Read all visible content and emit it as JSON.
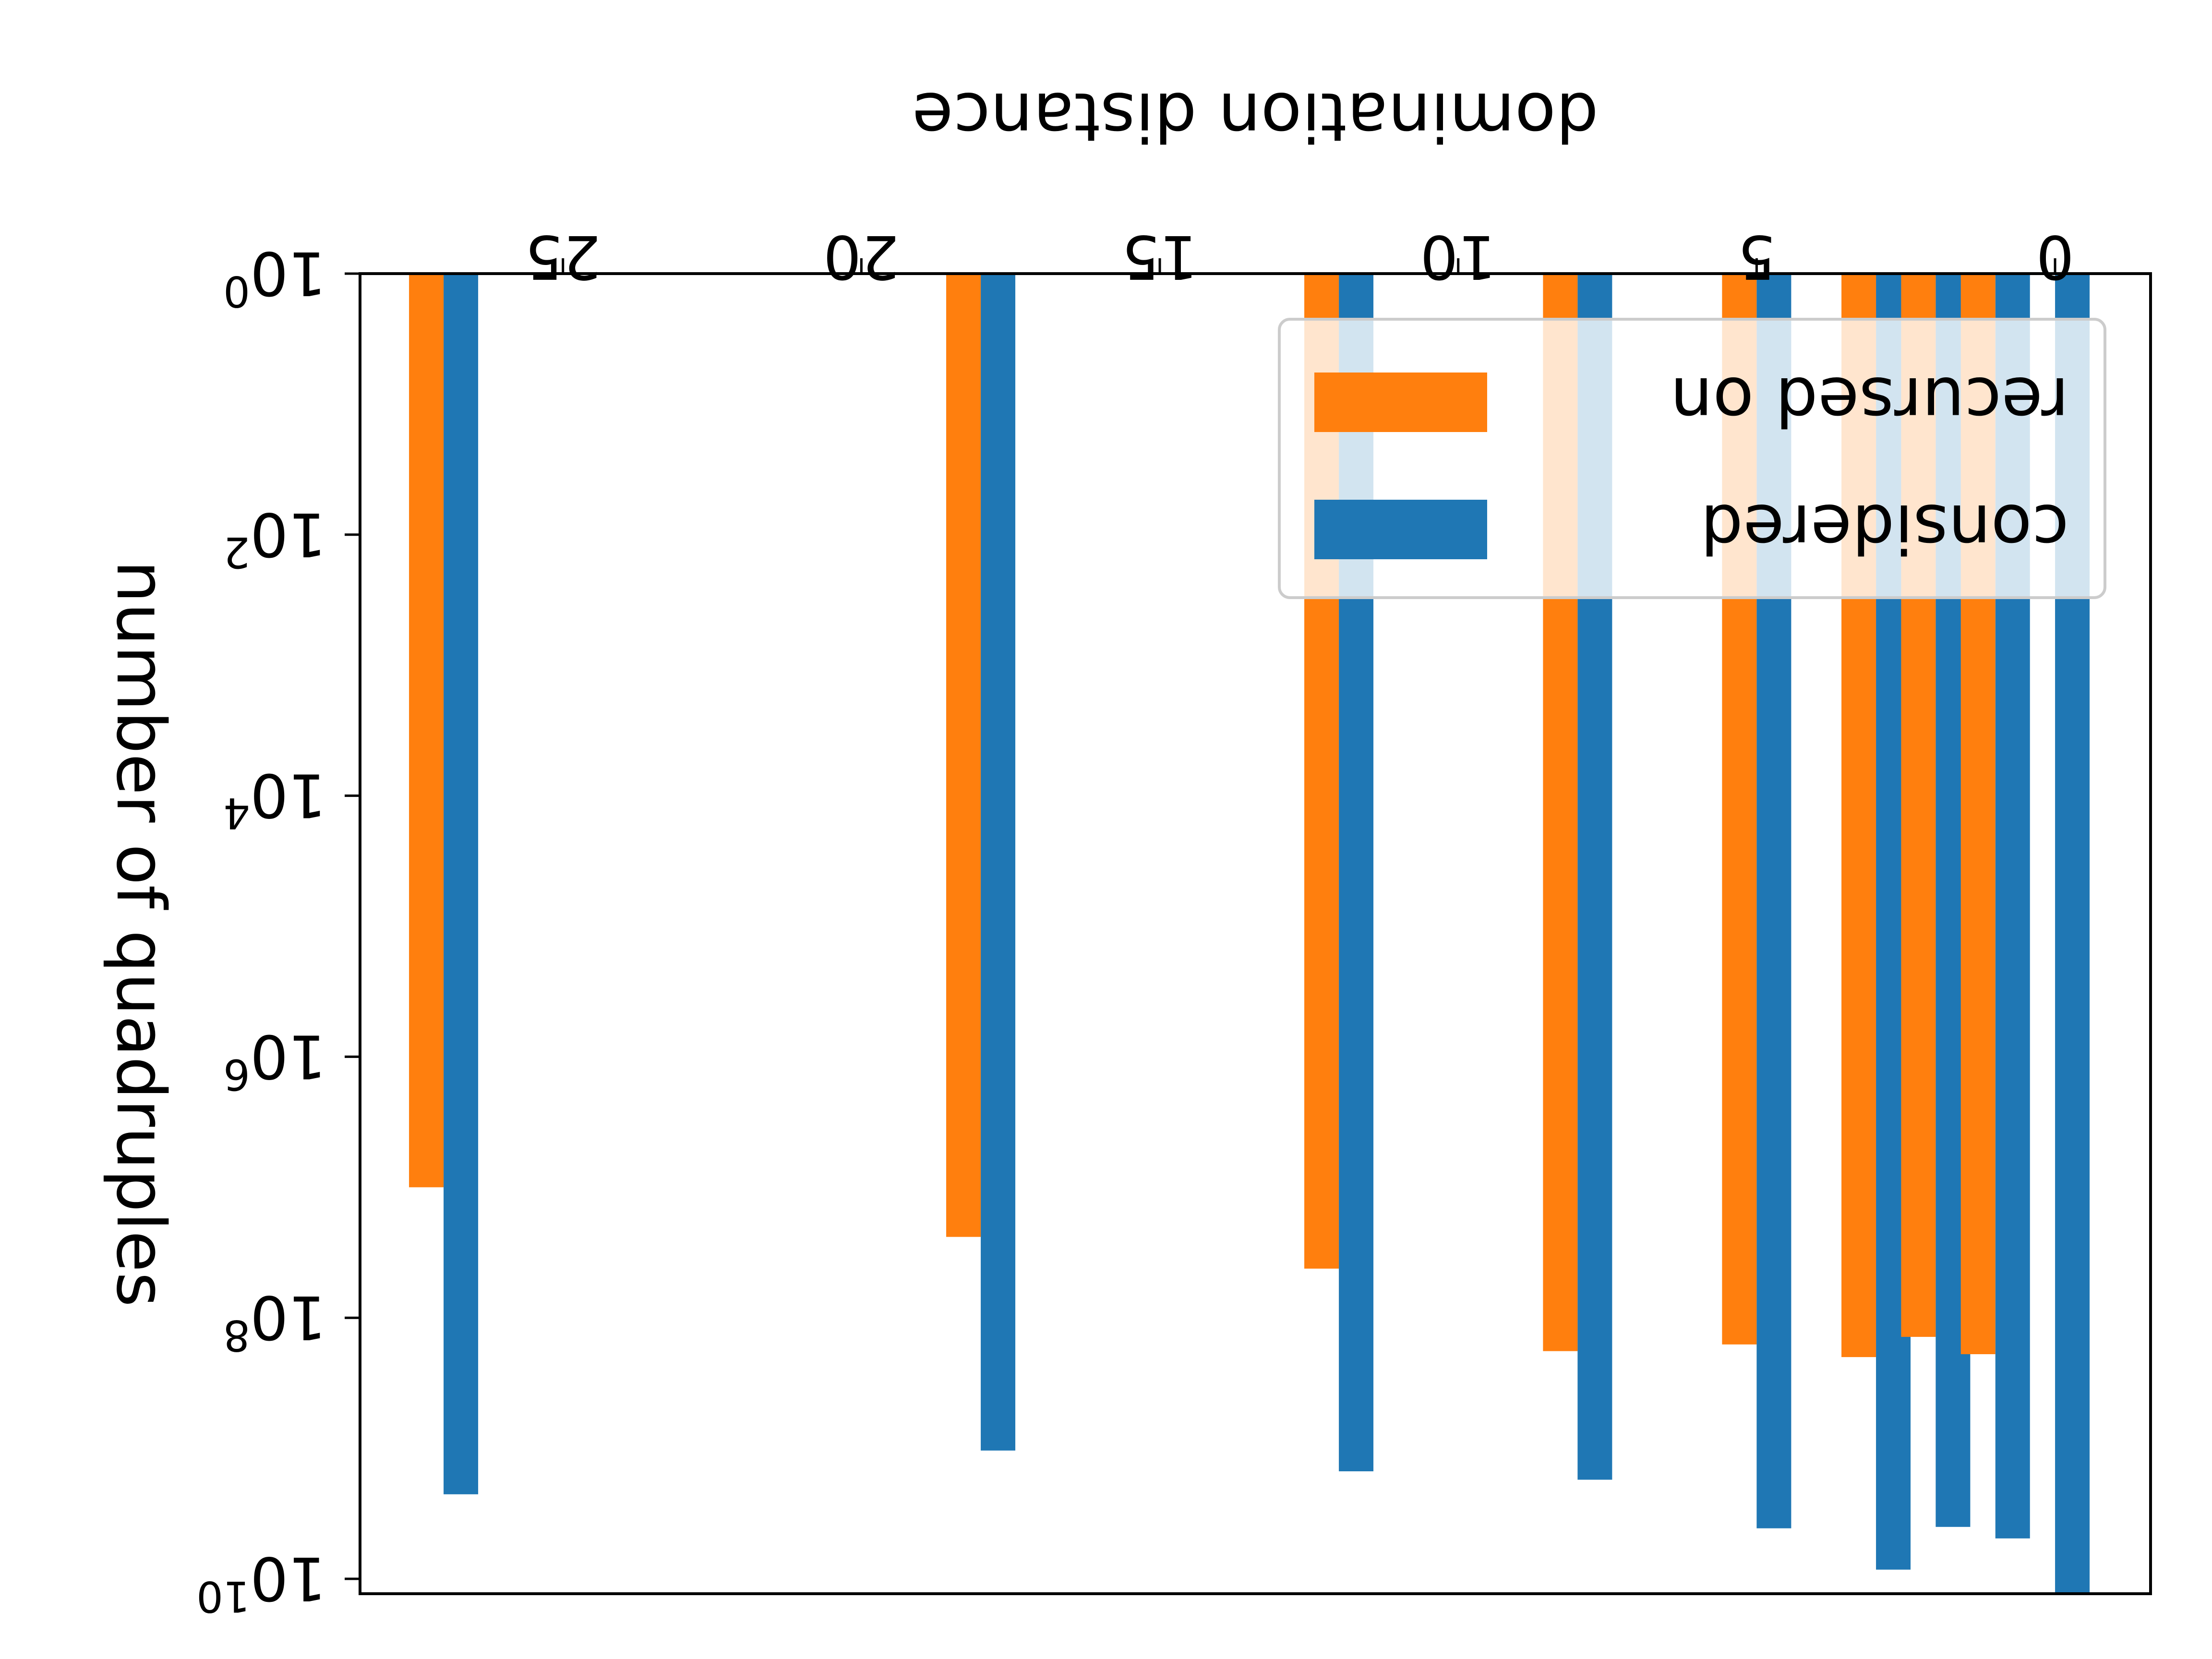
{
  "chart_data": {
    "type": "bar",
    "orientation": "rendered mirrored (rotated 180 degrees)",
    "xlabel": "domination distance",
    "ylabel": "number of quadruples",
    "x_ticks": [
      0,
      5,
      10,
      15,
      20,
      25
    ],
    "x_tick_labels": [
      "0",
      "5",
      "10",
      "15",
      "20",
      "25"
    ],
    "xlim": [
      -1.6,
      28.4
    ],
    "y_scale": "log",
    "ylim": [
      1,
      13000000000
    ],
    "y_ticks": [
      1,
      100,
      10000,
      1000000,
      100000000,
      10000000000
    ],
    "y_tick_labels": [
      {
        "base": "10",
        "exp": "0"
      },
      {
        "base": "10",
        "exp": "2"
      },
      {
        "base": "10",
        "exp": "4"
      },
      {
        "base": "10",
        "exp": "6"
      },
      {
        "base": "10",
        "exp": "8"
      },
      {
        "base": "10",
        "exp": "10"
      }
    ],
    "grid": false,
    "legend_position": "upper right (of the flipped figure)",
    "x": [
      0,
      1,
      2,
      3,
      5,
      8,
      12,
      18,
      27
    ],
    "series": [
      {
        "name": "considered",
        "color": "#1f77b4",
        "values": [
          13000000000,
          4900000000,
          4000000000,
          8500000000,
          4100000000,
          1740000000,
          1500000000,
          1040000000,
          2250000000
        ]
      },
      {
        "name": "recursed on",
        "color": "#ff7f0e",
        "values": [
          null,
          190000000,
          140000000,
          200000000,
          160000000,
          180000000,
          42000000,
          24000000,
          10000000
        ]
      }
    ]
  }
}
